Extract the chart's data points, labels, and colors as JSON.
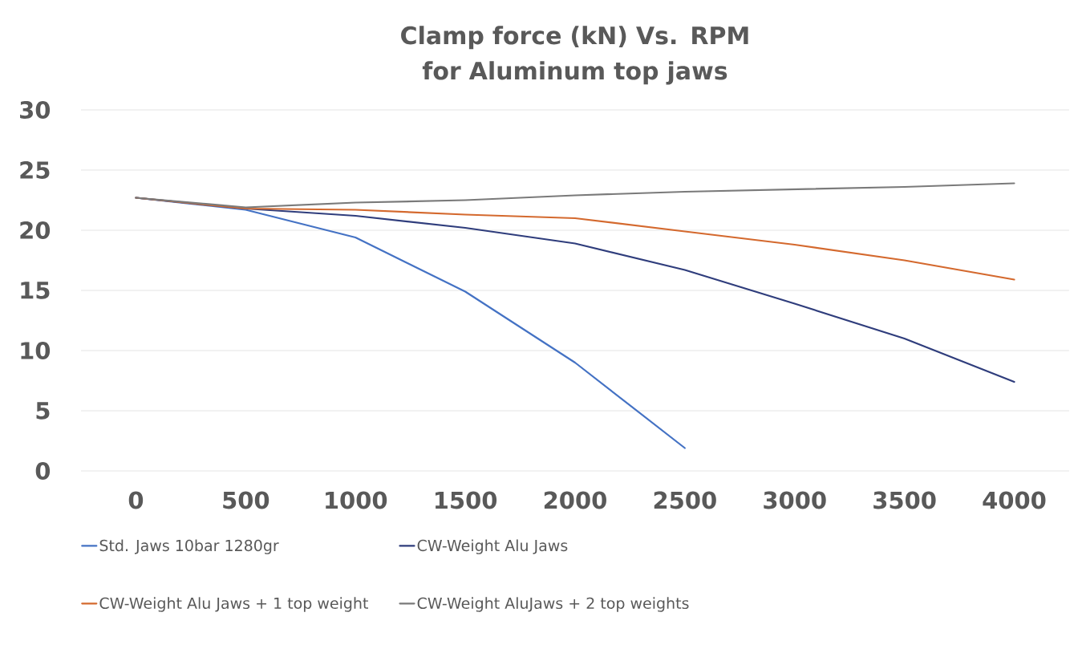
{
  "chart_data": {
    "type": "line",
    "title": "Clamp force (kN) Vs. RPM for Aluminum top jaws",
    "categories": [
      "0",
      "500",
      "1000",
      "1500",
      "2000",
      "2500",
      "3000",
      "3500",
      "4000"
    ],
    "series": [
      {
        "name": "Std. Jaws 10bar 1280gr",
        "color": "#4472c4",
        "values": [
          22.7,
          21.7,
          19.4,
          14.9,
          9.0,
          1.9,
          null,
          null,
          null
        ]
      },
      {
        "name": "CW-Weight Alu Jaws",
        "color": "#2f3d7c",
        "values": [
          22.7,
          21.8,
          21.2,
          20.2,
          18.9,
          16.7,
          13.9,
          11.0,
          7.4
        ]
      },
      {
        "name": "CW-Weight Alu Jaws + 1 top weight",
        "color": "#d4692e",
        "values": [
          22.7,
          21.8,
          21.7,
          21.3,
          21.0,
          19.9,
          18.8,
          17.5,
          15.9
        ]
      },
      {
        "name": "CW-Weight AluJaws + 2 top weights",
        "color": "#7a7a7a",
        "values": [
          22.7,
          21.9,
          22.3,
          22.5,
          22.9,
          23.2,
          23.4,
          23.6,
          23.9
        ]
      }
    ],
    "ylim": [
      0,
      30
    ],
    "yticks": [
      0,
      5,
      10,
      15,
      20,
      25,
      30
    ],
    "grid": "y",
    "legend": "bottom",
    "marker": "none",
    "line_style": "solid"
  }
}
